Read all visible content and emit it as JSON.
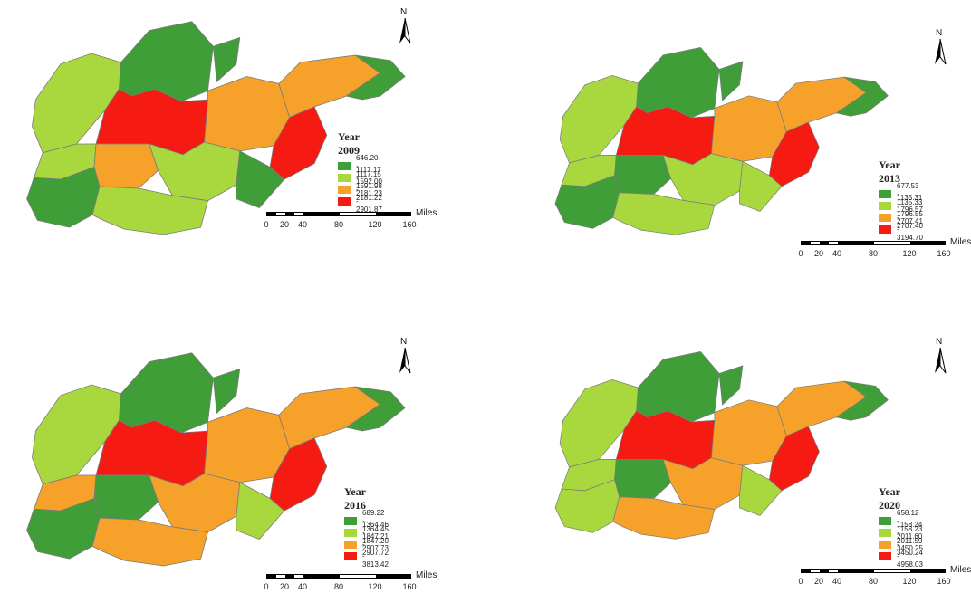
{
  "north_label": "N",
  "scale_unit": "Miles",
  "scale_ticks": [
    "0",
    "20",
    "40",
    "80",
    "120",
    "160"
  ],
  "colors": {
    "dark_green": "#3f9e38",
    "light_green": "#a8d83e",
    "orange": "#f5a12a",
    "red": "#f51a12",
    "border": "#7a7a7a"
  },
  "maps": [
    {
      "title": "Year 2009",
      "legend": [
        {
          "label": "646.20 - 1117.15",
          "color": "#3f9e38"
        },
        {
          "label": "1117.17 - 1591.98",
          "color": "#a8d83e"
        },
        {
          "label": "1592.00 - 2181.22",
          "color": "#f5a12a"
        },
        {
          "label": "2181.23 - 2901.87",
          "color": "#f51a12"
        }
      ]
    },
    {
      "title": "Year 2013",
      "legend": [
        {
          "label": "677.53 - 1135.33",
          "color": "#3f9e38"
        },
        {
          "label": "1135.31 - 1796.55",
          "color": "#a8d83e"
        },
        {
          "label": "1796.57 - 2707.40",
          "color": "#f5a12a"
        },
        {
          "label": "2707.41 - 3194.70",
          "color": "#f51a12"
        }
      ]
    },
    {
      "title": "Year 2016",
      "legend": [
        {
          "label": "689.22 - 1364.45",
          "color": "#3f9e38"
        },
        {
          "label": "1364.46 - 1847.20",
          "color": "#a8d83e"
        },
        {
          "label": "1847.21 - 2907.72",
          "color": "#f5a12a"
        },
        {
          "label": "2907.73 - 3813.42",
          "color": "#f51a12"
        }
      ]
    },
    {
      "title": "Year 2020",
      "legend": [
        {
          "label": "658.12 - 1158.23",
          "color": "#3f9e38"
        },
        {
          "label": "1158.24 - 2011.59",
          "color": "#a8d83e"
        },
        {
          "label": "2011.60 - 3450.24",
          "color": "#f5a12a"
        },
        {
          "label": "3450.25 - 4958.03",
          "color": "#f51a12"
        }
      ]
    }
  ]
}
